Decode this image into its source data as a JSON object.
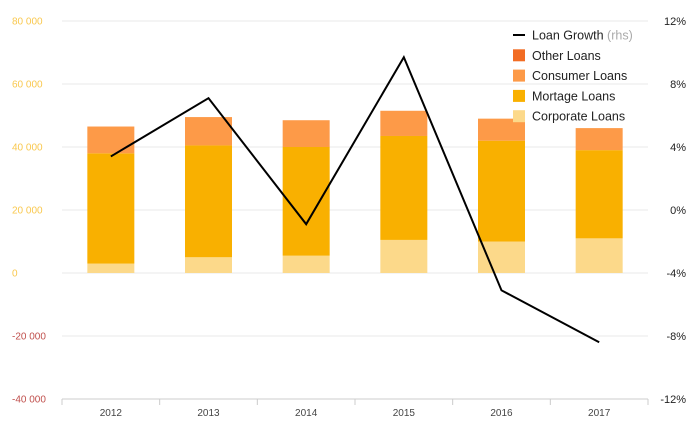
{
  "chart_data": {
    "type": "bar",
    "stacked": true,
    "categories": [
      "2012",
      "2013",
      "2014",
      "2015",
      "2016",
      "2017"
    ],
    "series": [
      {
        "name": "Corporate Loans",
        "color": "#fcd98a",
        "values": [
          3000,
          5000,
          5500,
          10500,
          10000,
          11000
        ]
      },
      {
        "name": "Mortage Loans",
        "color": "#f9b000",
        "values": [
          35000,
          35500,
          34500,
          33000,
          32000,
          28000
        ]
      },
      {
        "name": "Consumer Loans",
        "color": "#fd9a48",
        "values": [
          8500,
          9000,
          8500,
          8000,
          7000,
          7000
        ]
      },
      {
        "name": "Other Loans",
        "color": "#f26c23",
        "values": [
          0,
          0,
          0,
          0,
          0,
          0
        ]
      }
    ],
    "line_series": {
      "name": "Loan Growth",
      "axis_note": "(rhs)",
      "color": "#000000",
      "values": [
        3.4,
        7.1,
        -0.9,
        9.7,
        -5.1,
        -8.4
      ]
    },
    "y_left": {
      "ylim": [
        -40000,
        80000
      ],
      "ticks": [
        "80 000",
        "60 000",
        "40 000",
        "20 000",
        "0",
        "-20 000",
        "-40 000"
      ],
      "positive_color": "#f9c84e",
      "negative_color": "#c0504d"
    },
    "y_right": {
      "ylim": [
        -12,
        12
      ],
      "ticks": [
        "12%",
        "8%",
        "4%",
        "0%",
        "-4%",
        "-8%",
        "-12%"
      ]
    },
    "legend": {
      "placement": "top-right",
      "items": [
        "Loan Growth",
        "Other Loans",
        "Consumer Loans",
        "Mortage Loans",
        "Corporate Loans"
      ]
    },
    "grid": true,
    "gridline_color": "#e8e8e8",
    "axis_color": "#cccccc"
  }
}
